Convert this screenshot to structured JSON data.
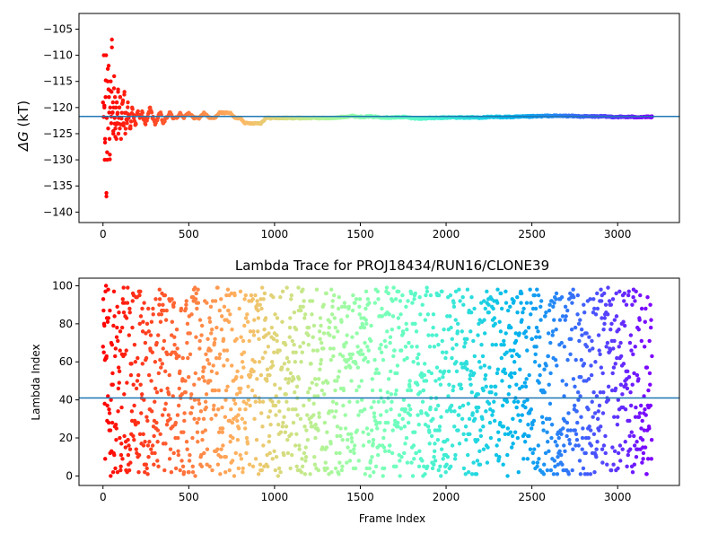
{
  "chart_data": [
    {
      "type": "scatter",
      "title": "",
      "xlabel": "",
      "ylabel": "ΔG (kT)",
      "ylabel_parts": {
        "symbol": "ΔG",
        "unit": " (kT)"
      },
      "xlim": [
        -140,
        3360
      ],
      "ylim": [
        -142,
        -102
      ],
      "xticks": [
        0,
        500,
        1000,
        1500,
        2000,
        2500,
        3000
      ],
      "xticklabels": [
        "0",
        "500",
        "1000",
        "1500",
        "2000",
        "2500",
        "3000"
      ],
      "yticks": [
        -105,
        -110,
        -115,
        -120,
        -125,
        -130,
        -135,
        -140
      ],
      "yticklabels": [
        "−105",
        "−110",
        "−115",
        "−120",
        "−125",
        "−130",
        "−135",
        "−140"
      ],
      "colormap": "rainbow",
      "hline": {
        "y": -121.7,
        "color": "#1f77b4"
      },
      "n_frames": 3200,
      "grid": false,
      "points": [
        [
          5,
          -110
        ],
        [
          8,
          -120
        ],
        [
          10,
          -130
        ],
        [
          12,
          -126
        ],
        [
          15,
          -118
        ],
        [
          18,
          -110
        ],
        [
          20,
          -137
        ],
        [
          22,
          -122
        ],
        [
          25,
          -130
        ],
        [
          28,
          -115
        ],
        [
          30,
          -124
        ],
        [
          33,
          -112
        ],
        [
          35,
          -118
        ],
        [
          38,
          -126
        ],
        [
          40,
          -129
        ],
        [
          42,
          -120
        ],
        [
          45,
          -115
        ],
        [
          48,
          -123
        ],
        [
          50,
          -117
        ],
        [
          52,
          -107
        ],
        [
          55,
          -121
        ],
        [
          58,
          -119
        ],
        [
          60,
          -125
        ],
        [
          62,
          -120
        ],
        [
          65,
          -114
        ],
        [
          68,
          -122
        ],
        [
          70,
          -118
        ],
        [
          72,
          -124
        ],
        [
          75,
          -120
        ],
        [
          78,
          -126
        ],
        [
          80,
          -119
        ],
        [
          82,
          -123
        ],
        [
          85,
          -121
        ],
        [
          88,
          -117
        ],
        [
          90,
          -125
        ],
        [
          92,
          -122
        ],
        [
          95,
          -120
        ],
        [
          98,
          -124
        ],
        [
          100,
          -118
        ],
        [
          105,
          -126
        ],
        [
          110,
          -121
        ],
        [
          115,
          -119
        ],
        [
          120,
          -123
        ],
        [
          125,
          -117
        ],
        [
          130,
          -125
        ],
        [
          135,
          -121
        ],
        [
          140,
          -123
        ],
        [
          145,
          -119
        ],
        [
          150,
          -122
        ],
        [
          160,
          -124
        ],
        [
          170,
          -120
        ],
        [
          180,
          -122
        ],
        [
          190,
          -123
        ],
        [
          200,
          -121
        ],
        [
          215,
          -122
        ],
        [
          230,
          -121
        ],
        [
          245,
          -123
        ],
        [
          260,
          -122
        ],
        [
          275,
          -120
        ],
        [
          290,
          -122
        ],
        [
          305,
          -123
        ],
        [
          320,
          -122
        ],
        [
          335,
          -121
        ],
        [
          350,
          -123
        ],
        [
          370,
          -122
        ],
        [
          390,
          -121
        ],
        [
          410,
          -122
        ],
        [
          430,
          -122
        ],
        [
          450,
          -121
        ],
        [
          470,
          -122
        ],
        [
          500,
          -121
        ],
        [
          530,
          -122
        ],
        [
          560,
          -122
        ],
        [
          590,
          -121
        ],
        [
          620,
          -122
        ],
        [
          650,
          -122
        ],
        [
          680,
          -121
        ],
        [
          710,
          -121
        ],
        [
          740,
          -121
        ],
        [
          770,
          -122
        ],
        [
          800,
          -122
        ],
        [
          830,
          -123
        ],
        [
          860,
          -123
        ],
        [
          890,
          -123
        ],
        [
          920,
          -123
        ],
        [
          950,
          -122
        ],
        [
          980,
          -122
        ],
        [
          1010,
          -122
        ],
        [
          1050,
          -122
        ],
        [
          1100,
          -122
        ],
        [
          1150,
          -122
        ],
        [
          1200,
          -122
        ],
        [
          1250,
          -122
        ],
        [
          1300,
          -122
        ],
        [
          1350,
          -122
        ],
        [
          1400,
          -121.8
        ],
        [
          1450,
          -121.6
        ],
        [
          1500,
          -121.8
        ],
        [
          1550,
          -121.7
        ],
        [
          1600,
          -121.8
        ],
        [
          1650,
          -121.9
        ],
        [
          1700,
          -121.9
        ],
        [
          1750,
          -121.8
        ],
        [
          1800,
          -122
        ],
        [
          1850,
          -122.1
        ],
        [
          1900,
          -122
        ],
        [
          1950,
          -122
        ],
        [
          2000,
          -121.9
        ],
        [
          2100,
          -121.9
        ],
        [
          2200,
          -121.9
        ],
        [
          2300,
          -121.8
        ],
        [
          2400,
          -121.8
        ],
        [
          2500,
          -121.7
        ],
        [
          2600,
          -121.6
        ],
        [
          2700,
          -121.6
        ],
        [
          2800,
          -121.7
        ],
        [
          2900,
          -121.7
        ],
        [
          3000,
          -121.8
        ],
        [
          3100,
          -121.8
        ],
        [
          3200,
          -121.8
        ]
      ]
    },
    {
      "type": "scatter",
      "title": "Lambda Trace for PROJ18434/RUN16/CLONE39",
      "xlabel": "Frame Index",
      "ylabel": "Lambda Index",
      "xlim": [
        -140,
        3360
      ],
      "ylim": [
        -5,
        104
      ],
      "xticks": [
        0,
        500,
        1000,
        1500,
        2000,
        2500,
        3000
      ],
      "xticklabels": [
        "0",
        "500",
        "1000",
        "1500",
        "2000",
        "2500",
        "3000"
      ],
      "yticks": [
        0,
        20,
        40,
        60,
        80,
        100
      ],
      "yticklabels": [
        "0",
        "20",
        "40",
        "60",
        "80",
        "100"
      ],
      "colormap": "rainbow",
      "hline": {
        "y": 41,
        "color": "#1f77b4"
      },
      "n_frames": 3200,
      "lambda_range": [
        0,
        99
      ],
      "grid": false
    }
  ]
}
